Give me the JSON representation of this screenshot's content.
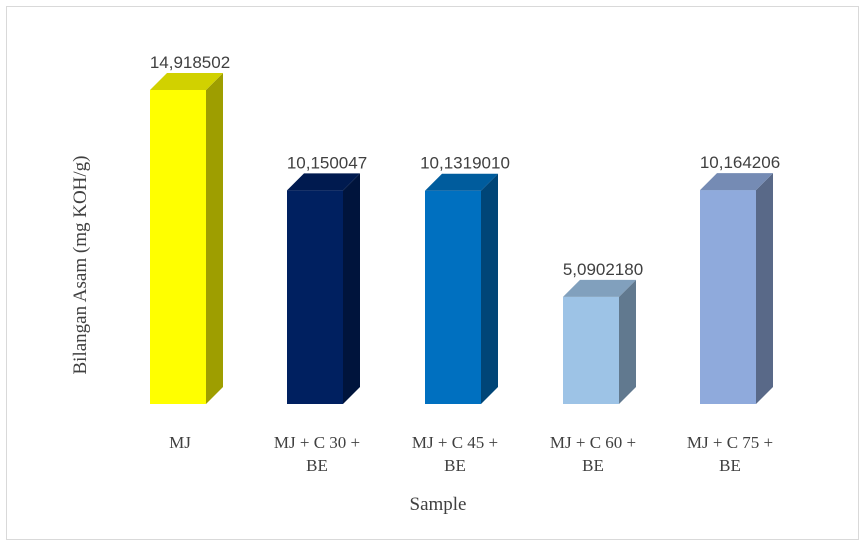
{
  "chart_data": {
    "type": "bar",
    "style": "3d-column",
    "categories": [
      [
        "MJ"
      ],
      [
        "MJ + C 30 +",
        "BE"
      ],
      [
        "MJ + C 45 +",
        "BE"
      ],
      [
        "MJ + C 60 +",
        "BE"
      ],
      [
        "MJ + C 75 +",
        "BE"
      ]
    ],
    "values": [
      14.918502,
      10.150047,
      10.131901,
      5.090218,
      10.164206
    ],
    "value_labels": [
      "14,918502",
      "10,150047",
      "10,1319010",
      "5,0902180",
      "10,164206"
    ],
    "colors": [
      "#ffff00",
      "#002060",
      "#0070c0",
      "#9dc3e6",
      "#8faadc"
    ],
    "xlabel": "Sample",
    "ylabel": "Bilangan Asam (mg KOH/g)",
    "ylim": [
      0,
      15
    ],
    "grid": false,
    "legend": "none"
  }
}
